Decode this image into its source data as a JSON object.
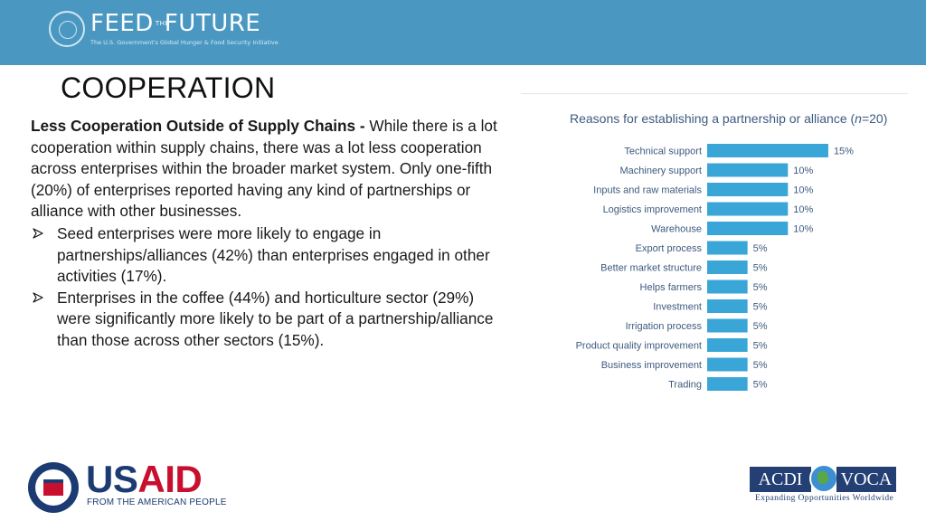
{
  "header": {
    "logo_part1": "FEED",
    "logo_the": "THE",
    "logo_part2": "FUTURE",
    "logo_tagline": "The U.S. Government's Global Hunger & Food Security Initiative"
  },
  "title": "COOPERATION",
  "body": {
    "lead_bold": "Less Cooperation Outside of Supply Chains - ",
    "lead_text": "While there is a lot cooperation within supply chains, there was a lot less cooperation across enterprises within the broader market system. Only one-fifth (20%) of enterprises reported having any kind of partnerships or alliance with other businesses.",
    "bullets": [
      "Seed enterprises were more likely to engage in partnerships/alliances (42%) than enterprises engaged in other activities (17%).",
      "Enterprises in the coffee (44%) and horticulture sector (29%) were significantly more likely to be part of a partnership/alliance than those across other sectors (15%)."
    ]
  },
  "chart_data": {
    "type": "bar",
    "orientation": "horizontal",
    "title_prefix": "Reasons for establishing a partnership or alliance (",
    "title_n": "n",
    "title_suffix": "=20)",
    "categories": [
      "Technical support",
      "Machinery support",
      "Inputs and raw materials",
      "Logistics improvement",
      "Warehouse",
      "Export process",
      "Better market structure",
      "Helps farmers",
      "Investment",
      "Irrigation process",
      "Product quality improvement",
      "Business improvement",
      "Trading"
    ],
    "values": [
      15,
      10,
      10,
      10,
      10,
      5,
      5,
      5,
      5,
      5,
      5,
      5,
      5
    ],
    "value_suffix": "%",
    "bar_color": "#3aa6d8",
    "label_color": "#3d5a80",
    "grid": false,
    "legend": "none"
  },
  "footer": {
    "usaid_part1": "US",
    "usaid_part2": "AID",
    "usaid_tagline": "FROM THE AMERICAN PEOPLE",
    "acdi_left": "ACDI",
    "acdi_right": "VOCA",
    "acdi_tagline": "Expanding Opportunities Worldwide"
  }
}
